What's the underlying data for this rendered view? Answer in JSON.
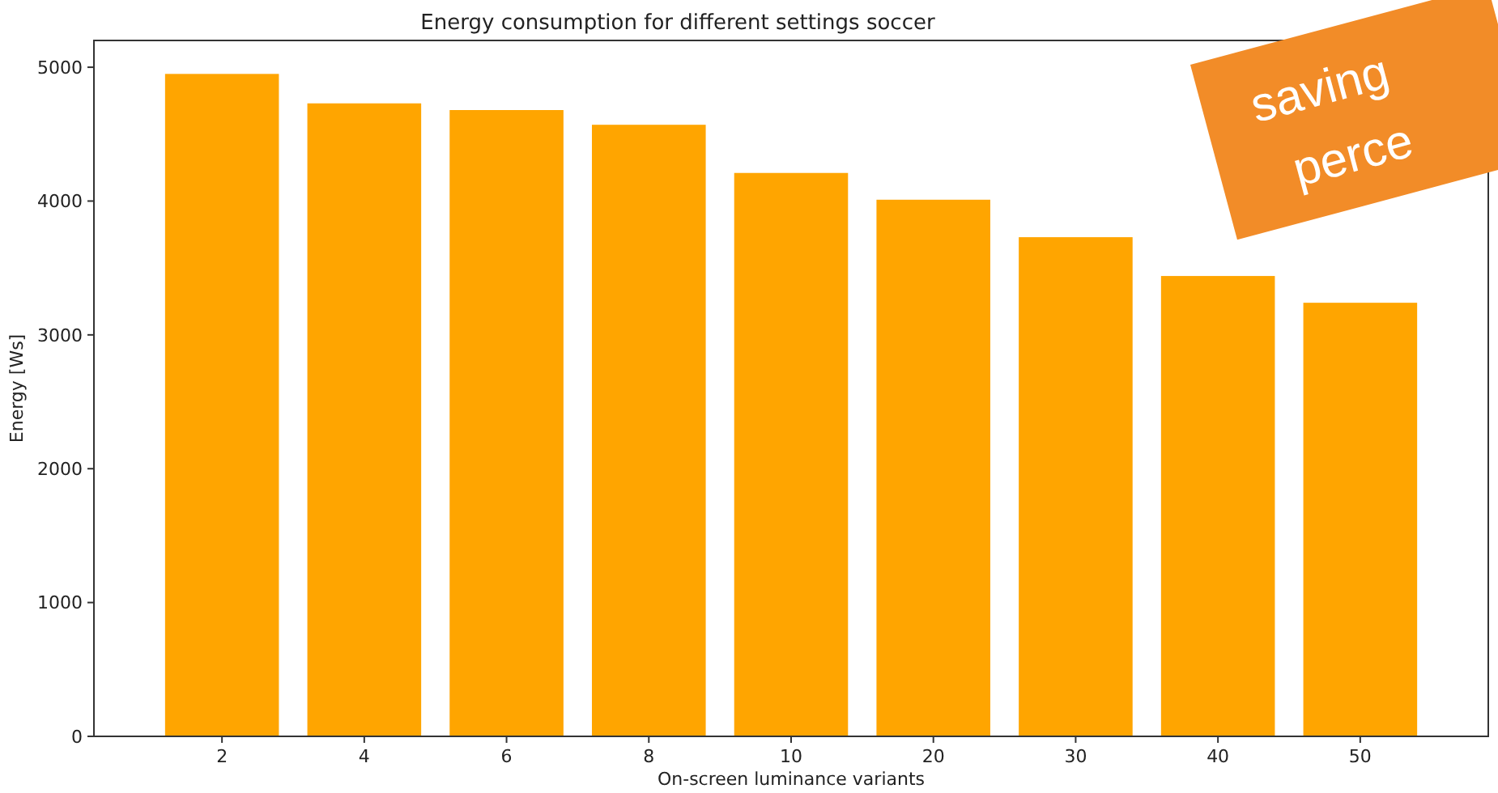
{
  "chart_data": {
    "type": "bar",
    "title": "Energy consumption for different settings soccer",
    "xlabel": "On-screen luminance variants",
    "ylabel": "Energy [Ws]",
    "categories": [
      "2",
      "4",
      "6",
      "8",
      "10",
      "20",
      "30",
      "40",
      "50"
    ],
    "values": [
      4950,
      4730,
      4680,
      4570,
      4210,
      4010,
      3730,
      3440,
      3240
    ],
    "color": "#ffa500",
    "ylim": [
      0,
      5200
    ],
    "yticks": [
      0,
      1000,
      2000,
      3000,
      4000,
      5000
    ],
    "grid": false,
    "annotations": [
      "saving",
      "perce"
    ]
  }
}
